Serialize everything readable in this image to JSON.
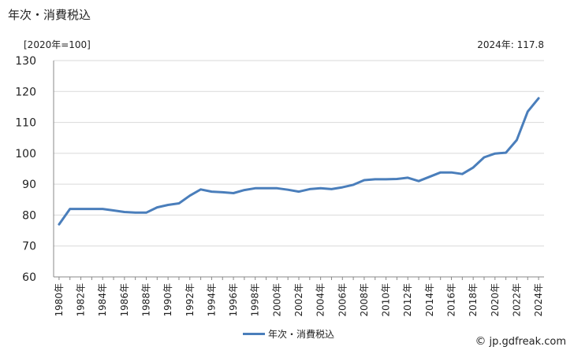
{
  "title": "年次・消費税込",
  "unit_label": "[2020年=100]",
  "latest_label": "2024年: 117.8",
  "credit": "jp.gdfreak.com",
  "credit_icon": "copyright-icon",
  "colors": {
    "series": "#4a7ebb",
    "grid": "#d9d9d9",
    "axis": "#888888",
    "text": "#222222"
  },
  "chart_data": {
    "type": "line",
    "title": "年次・消費税込",
    "ylabel": "[2020年=100]",
    "ylim": [
      60,
      130
    ],
    "yticks": [
      "130",
      "120",
      "110",
      "100",
      "90",
      "80",
      "70",
      "60"
    ],
    "x_tick_labels": [
      "1980年",
      "1982年",
      "1984年",
      "1986年",
      "1988年",
      "1990年",
      "1992年",
      "1994年",
      "1996年",
      "1998年",
      "2000年",
      "2002年",
      "2004年",
      "2006年",
      "2008年",
      "2010年",
      "2012年",
      "2014年",
      "2016年",
      "2018年",
      "2020年",
      "2022年",
      "2024年"
    ],
    "grid": "horizontal",
    "legend": "bottom",
    "series": [
      {
        "name": "年次・消費税込",
        "x": [
          1980,
          1981,
          1982,
          1983,
          1984,
          1985,
          1986,
          1987,
          1988,
          1989,
          1990,
          1991,
          1992,
          1993,
          1994,
          1995,
          1996,
          1997,
          1998,
          1999,
          2000,
          2001,
          2002,
          2003,
          2004,
          2005,
          2006,
          2007,
          2008,
          2009,
          2010,
          2011,
          2012,
          2013,
          2014,
          2015,
          2016,
          2017,
          2018,
          2019,
          2020,
          2021,
          2022,
          2023,
          2024
        ],
        "values": [
          77.0,
          82.0,
          82.0,
          82.0,
          82.0,
          81.5,
          81.0,
          80.8,
          80.8,
          82.5,
          83.3,
          83.8,
          86.3,
          88.3,
          87.6,
          87.4,
          87.1,
          88.1,
          88.7,
          88.7,
          88.7,
          88.2,
          87.6,
          88.4,
          88.7,
          88.4,
          89.0,
          89.8,
          91.3,
          91.6,
          91.6,
          91.7,
          92.1,
          91.0,
          92.4,
          93.8,
          93.8,
          93.3,
          95.4,
          98.7,
          99.9,
          100.2,
          104.3,
          113.5,
          117.8
        ]
      }
    ]
  }
}
